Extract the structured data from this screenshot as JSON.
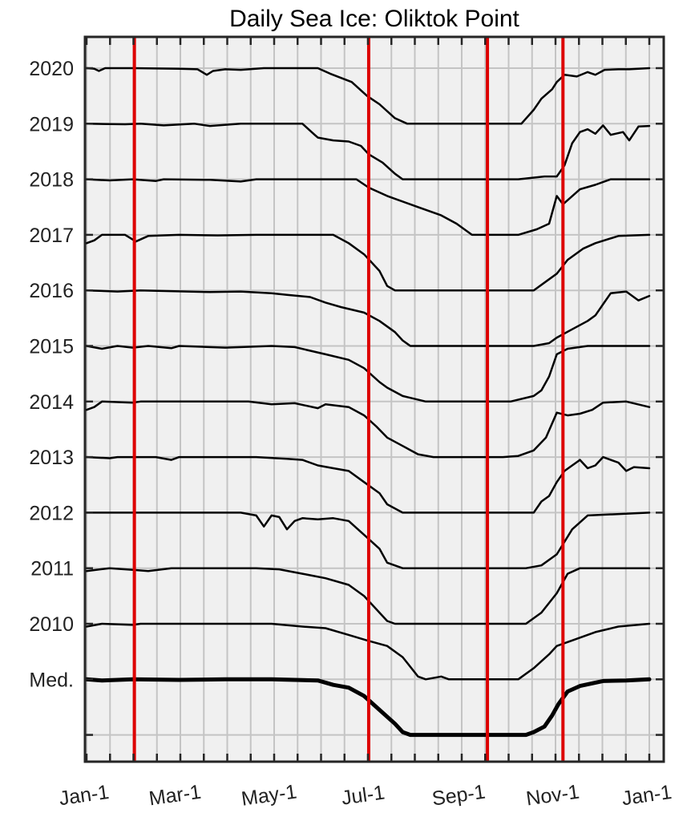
{
  "chart_data": {
    "type": "line",
    "title": "Daily Sea Ice: Oliktok Point",
    "xlabel": "",
    "ylabel": "",
    "x_unit": "day of year",
    "xlim": [
      0,
      366
    ],
    "x_ticks": [
      {
        "label": "Jan-1",
        "day": 0
      },
      {
        "label": "Mar-1",
        "day": 59
      },
      {
        "label": "May-1",
        "day": 120
      },
      {
        "label": "Jul-1",
        "day": 181
      },
      {
        "label": "Sep-1",
        "day": 243
      },
      {
        "label": "Nov-1",
        "day": 304
      },
      {
        "label": "Jan-1",
        "day": 365
      }
    ],
    "y_ticks": [
      "2020",
      "2019",
      "2018",
      "2017",
      "2016",
      "2015",
      "2014",
      "2013",
      "2012",
      "2011",
      "2010",
      "Med.",
      ""
    ],
    "grid": true,
    "legend": "none",
    "vertical_markers": {
      "color": "#dd0000",
      "days": [
        31,
        183,
        260,
        309
      ]
    },
    "series_note": "each series is a sea-ice concentration trace (0 to 1) drawn in its own band",
    "series": [
      {
        "label": "2020",
        "points": [
          [
            0,
            1
          ],
          [
            5,
            0.99
          ],
          [
            8,
            0.95
          ],
          [
            12,
            1
          ],
          [
            30,
            1
          ],
          [
            60,
            0.99
          ],
          [
            72,
            0.98
          ],
          [
            78,
            0.88
          ],
          [
            82,
            0.95
          ],
          [
            90,
            0.98
          ],
          [
            100,
            0.97
          ],
          [
            115,
            1
          ],
          [
            150,
            1
          ],
          [
            158,
            0.9
          ],
          [
            172,
            0.75
          ],
          [
            182,
            0.5
          ],
          [
            190,
            0.35
          ],
          [
            200,
            0.1
          ],
          [
            208,
            0
          ],
          [
            250,
            0
          ],
          [
            282,
            0
          ],
          [
            290,
            0.25
          ],
          [
            295,
            0.45
          ],
          [
            302,
            0.62
          ],
          [
            305,
            0.75
          ],
          [
            310,
            0.88
          ],
          [
            318,
            0.85
          ],
          [
            325,
            0.93
          ],
          [
            330,
            0.88
          ],
          [
            336,
            0.97
          ],
          [
            345,
            0.98
          ],
          [
            352,
            0.98
          ],
          [
            365,
            1
          ]
        ]
      },
      {
        "label": "2019",
        "points": [
          [
            0,
            1
          ],
          [
            25,
            0.99
          ],
          [
            35,
            1
          ],
          [
            50,
            0.97
          ],
          [
            70,
            1
          ],
          [
            80,
            0.96
          ],
          [
            100,
            1
          ],
          [
            140,
            1
          ],
          [
            148,
            0.8
          ],
          [
            150,
            0.75
          ],
          [
            160,
            0.7
          ],
          [
            170,
            0.68
          ],
          [
            178,
            0.6
          ],
          [
            183,
            0.45
          ],
          [
            192,
            0.3
          ],
          [
            200,
            0.1
          ],
          [
            205,
            0
          ],
          [
            280,
            0
          ],
          [
            297,
            0.05
          ],
          [
            305,
            0.05
          ],
          [
            310,
            0.25
          ],
          [
            315,
            0.65
          ],
          [
            320,
            0.85
          ],
          [
            325,
            0.9
          ],
          [
            330,
            0.82
          ],
          [
            335,
            0.97
          ],
          [
            340,
            0.8
          ],
          [
            348,
            0.85
          ],
          [
            352,
            0.7
          ],
          [
            358,
            0.95
          ],
          [
            365,
            0.96
          ]
        ]
      },
      {
        "label": "2018",
        "points": [
          [
            0,
            1
          ],
          [
            15,
            0.98
          ],
          [
            30,
            1
          ],
          [
            45,
            0.97
          ],
          [
            50,
            1
          ],
          [
            80,
            0.99
          ],
          [
            100,
            0.96
          ],
          [
            110,
            1
          ],
          [
            175,
            1
          ],
          [
            183,
            0.85
          ],
          [
            195,
            0.7
          ],
          [
            215,
            0.5
          ],
          [
            230,
            0.35
          ],
          [
            240,
            0.2
          ],
          [
            250,
            0
          ],
          [
            280,
            0
          ],
          [
            292,
            0.1
          ],
          [
            300,
            0.2
          ],
          [
            305,
            0.7
          ],
          [
            309,
            0.55
          ],
          [
            320,
            0.82
          ],
          [
            330,
            0.9
          ],
          [
            340,
            1
          ],
          [
            352,
            1
          ],
          [
            365,
            1
          ]
        ]
      },
      {
        "label": "2017",
        "points": [
          [
            0,
            0.85
          ],
          [
            5,
            0.9
          ],
          [
            10,
            1
          ],
          [
            25,
            1
          ],
          [
            32,
            0.88
          ],
          [
            40,
            0.98
          ],
          [
            60,
            1
          ],
          [
            85,
            0.99
          ],
          [
            110,
            1
          ],
          [
            160,
            1
          ],
          [
            170,
            0.85
          ],
          [
            180,
            0.65
          ],
          [
            190,
            0.35
          ],
          [
            195,
            0.08
          ],
          [
            200,
            0
          ],
          [
            290,
            0
          ],
          [
            300,
            0.2
          ],
          [
            305,
            0.3
          ],
          [
            312,
            0.55
          ],
          [
            322,
            0.75
          ],
          [
            330,
            0.85
          ],
          [
            345,
            0.98
          ],
          [
            365,
            1
          ]
        ]
      },
      {
        "label": "2016",
        "points": [
          [
            0,
            1
          ],
          [
            20,
            0.98
          ],
          [
            35,
            1
          ],
          [
            80,
            0.97
          ],
          [
            100,
            0.98
          ],
          [
            120,
            0.95
          ],
          [
            130,
            0.92
          ],
          [
            145,
            0.88
          ],
          [
            155,
            0.78
          ],
          [
            165,
            0.7
          ],
          [
            180,
            0.6
          ],
          [
            190,
            0.45
          ],
          [
            200,
            0.25
          ],
          [
            205,
            0.1
          ],
          [
            210,
            0
          ],
          [
            290,
            0
          ],
          [
            300,
            0.05
          ],
          [
            305,
            0.15
          ],
          [
            315,
            0.3
          ],
          [
            325,
            0.45
          ],
          [
            330,
            0.55
          ],
          [
            335,
            0.75
          ],
          [
            340,
            0.95
          ],
          [
            350,
            0.98
          ],
          [
            358,
            0.82
          ],
          [
            365,
            0.9
          ]
        ]
      },
      {
        "label": "2015",
        "points": [
          [
            0,
            1
          ],
          [
            10,
            0.95
          ],
          [
            20,
            1
          ],
          [
            30,
            0.97
          ],
          [
            40,
            1
          ],
          [
            55,
            0.96
          ],
          [
            60,
            1
          ],
          [
            90,
            0.97
          ],
          [
            120,
            1
          ],
          [
            135,
            0.98
          ],
          [
            155,
            0.85
          ],
          [
            170,
            0.75
          ],
          [
            180,
            0.6
          ],
          [
            190,
            0.35
          ],
          [
            195,
            0.25
          ],
          [
            205,
            0.1
          ],
          [
            220,
            0
          ],
          [
            275,
            0
          ],
          [
            290,
            0.1
          ],
          [
            295,
            0.2
          ],
          [
            300,
            0.45
          ],
          [
            305,
            0.85
          ],
          [
            312,
            0.95
          ],
          [
            325,
            1
          ],
          [
            365,
            1
          ]
        ]
      },
      {
        "label": "2014",
        "points": [
          [
            0,
            0.85
          ],
          [
            5,
            0.9
          ],
          [
            10,
            1
          ],
          [
            30,
            0.98
          ],
          [
            35,
            1
          ],
          [
            60,
            1
          ],
          [
            105,
            1
          ],
          [
            120,
            0.95
          ],
          [
            135,
            0.97
          ],
          [
            150,
            0.88
          ],
          [
            155,
            0.95
          ],
          [
            170,
            0.9
          ],
          [
            180,
            0.75
          ],
          [
            188,
            0.55
          ],
          [
            195,
            0.35
          ],
          [
            205,
            0.2
          ],
          [
            215,
            0.05
          ],
          [
            225,
            0
          ],
          [
            270,
            0
          ],
          [
            280,
            0.02
          ],
          [
            290,
            0.12
          ],
          [
            298,
            0.35
          ],
          [
            305,
            0.8
          ],
          [
            312,
            0.75
          ],
          [
            320,
            0.78
          ],
          [
            328,
            0.85
          ],
          [
            335,
            0.98
          ],
          [
            350,
            1
          ],
          [
            365,
            0.9
          ]
        ]
      },
      {
        "label": "2013",
        "points": [
          [
            0,
            1
          ],
          [
            15,
            0.98
          ],
          [
            20,
            1
          ],
          [
            45,
            1
          ],
          [
            55,
            0.95
          ],
          [
            60,
            1
          ],
          [
            110,
            1
          ],
          [
            130,
            0.97
          ],
          [
            140,
            0.95
          ],
          [
            150,
            0.85
          ],
          [
            160,
            0.8
          ],
          [
            170,
            0.75
          ],
          [
            180,
            0.55
          ],
          [
            190,
            0.35
          ],
          [
            195,
            0.15
          ],
          [
            205,
            0
          ],
          [
            290,
            0
          ],
          [
            295,
            0.2
          ],
          [
            300,
            0.3
          ],
          [
            305,
            0.55
          ],
          [
            310,
            0.75
          ],
          [
            320,
            0.95
          ],
          [
            325,
            0.8
          ],
          [
            330,
            0.85
          ],
          [
            335,
            1
          ],
          [
            340,
            0.95
          ],
          [
            345,
            0.9
          ],
          [
            350,
            0.75
          ],
          [
            355,
            0.82
          ],
          [
            365,
            0.8
          ]
        ]
      },
      {
        "label": "2012",
        "points": [
          [
            0,
            1
          ],
          [
            100,
            1
          ],
          [
            110,
            0.95
          ],
          [
            115,
            0.75
          ],
          [
            120,
            0.95
          ],
          [
            125,
            0.92
          ],
          [
            130,
            0.7
          ],
          [
            135,
            0.85
          ],
          [
            140,
            0.9
          ],
          [
            150,
            0.88
          ],
          [
            160,
            0.9
          ],
          [
            170,
            0.85
          ],
          [
            180,
            0.6
          ],
          [
            190,
            0.35
          ],
          [
            195,
            0.1
          ],
          [
            205,
            0
          ],
          [
            285,
            0
          ],
          [
            295,
            0.05
          ],
          [
            305,
            0.25
          ],
          [
            315,
            0.7
          ],
          [
            325,
            0.95
          ],
          [
            365,
            1
          ]
        ]
      },
      {
        "label": "2011",
        "points": [
          [
            0,
            0.95
          ],
          [
            15,
            1
          ],
          [
            30,
            0.97
          ],
          [
            40,
            0.95
          ],
          [
            55,
            1
          ],
          [
            110,
            1
          ],
          [
            125,
            0.98
          ],
          [
            140,
            0.9
          ],
          [
            155,
            0.82
          ],
          [
            170,
            0.7
          ],
          [
            180,
            0.5
          ],
          [
            190,
            0.2
          ],
          [
            195,
            0.05
          ],
          [
            200,
            0
          ],
          [
            285,
            0
          ],
          [
            295,
            0.2
          ],
          [
            305,
            0.55
          ],
          [
            312,
            0.9
          ],
          [
            320,
            1
          ],
          [
            365,
            1
          ]
        ]
      },
      {
        "label": "2010",
        "points": [
          [
            0,
            0.95
          ],
          [
            10,
            1
          ],
          [
            30,
            0.98
          ],
          [
            35,
            1
          ],
          [
            120,
            1
          ],
          [
            140,
            0.95
          ],
          [
            155,
            0.92
          ],
          [
            170,
            0.8
          ],
          [
            182,
            0.7
          ],
          [
            195,
            0.6
          ],
          [
            205,
            0.4
          ],
          [
            215,
            0.05
          ],
          [
            220,
            0
          ],
          [
            230,
            0.05
          ],
          [
            235,
            0
          ],
          [
            280,
            0
          ],
          [
            290,
            0.2
          ],
          [
            300,
            0.45
          ],
          [
            305,
            0.6
          ],
          [
            315,
            0.7
          ],
          [
            330,
            0.85
          ],
          [
            345,
            0.95
          ],
          [
            365,
            1
          ]
        ]
      },
      {
        "label": "Med.",
        "emphasis": true,
        "points": [
          [
            0,
            1
          ],
          [
            10,
            0.98
          ],
          [
            30,
            1
          ],
          [
            60,
            0.99
          ],
          [
            90,
            1
          ],
          [
            120,
            1
          ],
          [
            150,
            0.98
          ],
          [
            160,
            0.9
          ],
          [
            170,
            0.85
          ],
          [
            180,
            0.7
          ],
          [
            190,
            0.45
          ],
          [
            200,
            0.2
          ],
          [
            205,
            0.05
          ],
          [
            210,
            0
          ],
          [
            285,
            0
          ],
          [
            290,
            0.05
          ],
          [
            297,
            0.15
          ],
          [
            302,
            0.35
          ],
          [
            306,
            0.55
          ],
          [
            312,
            0.78
          ],
          [
            320,
            0.88
          ],
          [
            335,
            0.97
          ],
          [
            350,
            0.98
          ],
          [
            365,
            1
          ]
        ]
      }
    ]
  }
}
